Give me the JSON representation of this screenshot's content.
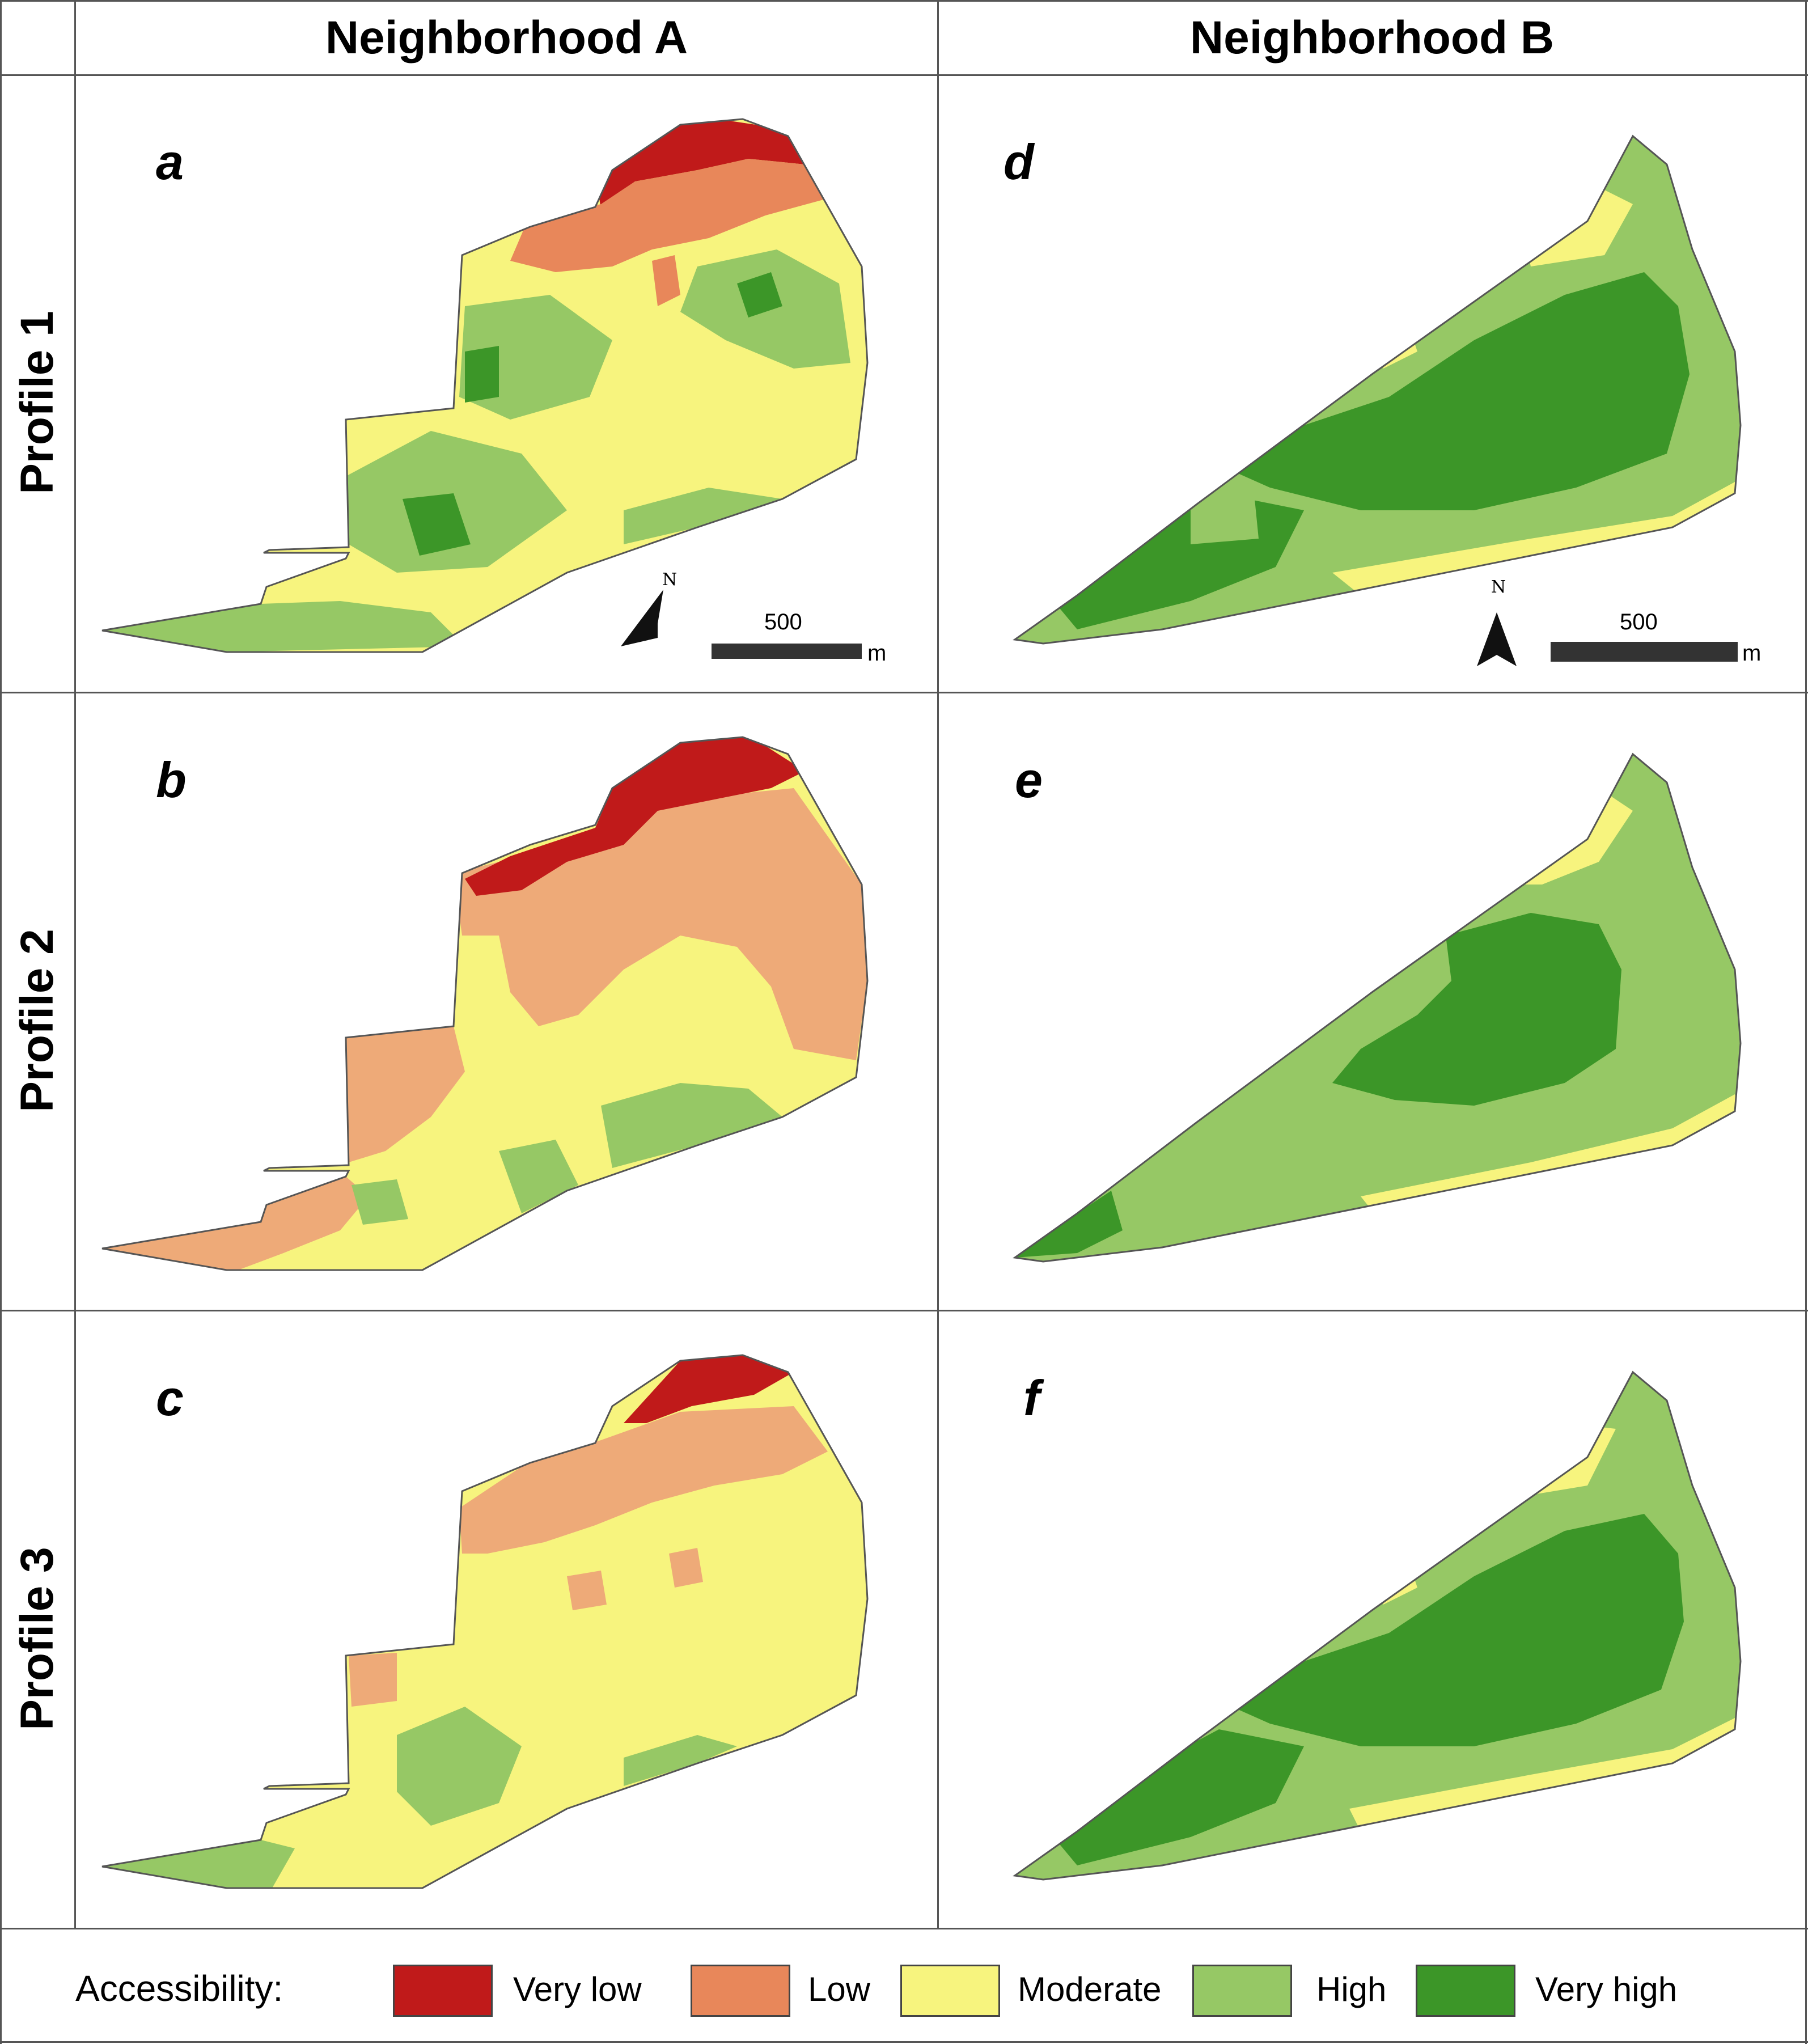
{
  "figure": {
    "columns": [
      "Neighborhood A",
      "Neighborhood B"
    ],
    "rows": [
      "Profile 1",
      "Profile 2",
      "Profile 3"
    ],
    "panels": [
      {
        "letter": "a",
        "neighborhood": "Neighborhood A",
        "profile": "Profile 1"
      },
      {
        "letter": "d",
        "neighborhood": "Neighborhood B",
        "profile": "Profile 1"
      },
      {
        "letter": "b",
        "neighborhood": "Neighborhood A",
        "profile": "Profile 2"
      },
      {
        "letter": "e",
        "neighborhood": "Neighborhood B",
        "profile": "Profile 2"
      },
      {
        "letter": "c",
        "neighborhood": "Neighborhood A",
        "profile": "Profile 3"
      },
      {
        "letter": "f",
        "neighborhood": "Neighborhood B",
        "profile": "Profile 3"
      }
    ]
  },
  "scale_bar": {
    "value": "500",
    "unit": "m"
  },
  "north_arrow": {
    "label": "N"
  },
  "legend": {
    "title": "Accessibility:",
    "classes": [
      {
        "label": "Very low",
        "color": "#c01a1a"
      },
      {
        "label": "Low",
        "color": "#e8875a"
      },
      {
        "label": "Moderate",
        "color": "#f7f47e"
      },
      {
        "label": "High",
        "color": "#96c865"
      },
      {
        "label": "Very high",
        "color": "#3c9628"
      }
    ]
  },
  "colors": {
    "very_low": "#c01a1a",
    "low": "#e8875a",
    "low_light": "#eeaa78",
    "moderate": "#f7f47e",
    "high": "#96c865",
    "very_high": "#3c9628",
    "grid_line": "#555555"
  }
}
